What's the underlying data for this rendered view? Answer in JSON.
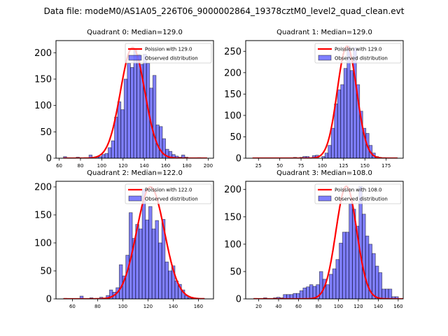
{
  "chart_data": {
    "type": "bar",
    "suptitle": "Data file: modeM0/AS1A05_226T06_9000002864_19378cztM0_level2_quad_clean.evt",
    "colors": {
      "bar_fill": "#0000ff",
      "bar_alpha": 0.5,
      "bar_edge": "#000000",
      "fit_line": "#ff0000"
    },
    "panels": [
      {
        "title": "Quadrant 0: Median=129.0",
        "legend": [
          "Poission with 129.0",
          "Observed distribution"
        ],
        "legend_loc": "upper right",
        "median": 129.0,
        "xlim": [
          57,
          205
        ],
        "ylim": [
          0,
          223
        ],
        "xticks": [
          60,
          80,
          100,
          120,
          140,
          160,
          180,
          200
        ],
        "yticks": [
          0,
          50,
          100,
          150,
          200
        ],
        "bin_start": 64,
        "bin_width": 3,
        "counts": [
          3,
          0,
          0,
          0,
          2,
          0,
          0,
          0,
          6,
          0,
          3,
          3,
          7,
          9,
          20,
          33,
          78,
          107,
          92,
          150,
          180,
          172,
          208,
          197,
          178,
          197,
          180,
          133,
          157,
          63,
          60,
          37,
          17,
          13,
          7,
          4,
          2,
          6,
          2,
          0,
          0,
          0,
          1,
          0,
          0
        ],
        "fit_peak": 210,
        "fit_sigma": 11.4
      },
      {
        "title": "Quadrant 1: Median=129.0",
        "legend": [
          "Poission with 129.0",
          "Observed distribution"
        ],
        "legend_loc": "upper right",
        "median": 129.0,
        "xlim": [
          10,
          195
        ],
        "ylim": [
          0,
          275
        ],
        "xticks": [
          25,
          50,
          75,
          100,
          125,
          150,
          175
        ],
        "yticks": [
          0,
          50,
          100,
          150,
          200,
          250
        ],
        "bin_start": 18,
        "bin_width": 3.7,
        "counts": [
          0,
          0,
          0,
          0,
          0,
          0,
          0,
          0,
          0,
          0,
          0,
          0,
          0,
          2,
          0,
          2,
          4,
          4,
          0,
          6,
          7,
          0,
          4,
          12,
          30,
          70,
          127,
          160,
          172,
          210,
          262,
          205,
          258,
          172,
          110,
          70,
          58,
          30,
          12,
          4,
          2,
          0,
          0,
          0,
          0,
          1
        ],
        "fit_peak": 262,
        "fit_sigma": 11.4
      },
      {
        "title": "Quadrant 2: Median=122.0",
        "legend": [
          "Poission with 122.0",
          "Observed distribution"
        ],
        "legend_loc": "upper right",
        "median": 122.0,
        "xlim": [
          47,
          172
        ],
        "ylim": [
          0,
          210
        ],
        "xticks": [
          60,
          80,
          100,
          120,
          140,
          160
        ],
        "yticks": [
          0,
          50,
          100,
          150,
          200
        ],
        "bin_start": 53,
        "bin_width": 2.6,
        "counts": [
          1,
          0,
          0,
          0,
          0,
          5,
          0,
          0,
          2,
          0,
          0,
          3,
          0,
          6,
          16,
          12,
          20,
          61,
          41,
          78,
          154,
          108,
          133,
          125,
          196,
          141,
          165,
          125,
          140,
          100,
          142,
          66,
          50,
          59,
          32,
          26,
          16,
          6,
          2,
          1,
          0,
          0,
          1
        ],
        "fit_peak": 200,
        "fit_sigma": 11.0
      },
      {
        "title": "Quadrant 3: Median=108.0",
        "legend": [
          "Poission with 108.0",
          "Observed distribution"
        ],
        "legend_loc": "upper right",
        "median": 108.0,
        "xlim": [
          7,
          165
        ],
        "ylim": [
          0,
          215
        ],
        "xticks": [
          20,
          40,
          60,
          80,
          100,
          120,
          140,
          160
        ],
        "yticks": [
          0,
          50,
          100,
          150,
          200
        ],
        "bin_start": 15,
        "bin_width": 3.3,
        "counts": [
          1,
          0,
          0,
          2,
          0,
          0,
          2,
          3,
          2,
          8,
          8,
          8,
          10,
          10,
          15,
          20,
          22,
          26,
          23,
          26,
          50,
          36,
          26,
          45,
          55,
          72,
          102,
          122,
          122,
          174,
          164,
          133,
          206,
          155,
          115,
          100,
          83,
          60,
          48,
          18,
          18,
          18,
          4,
          4,
          0,
          0
        ],
        "fit_peak": 206,
        "fit_sigma": 10.4
      }
    ]
  }
}
